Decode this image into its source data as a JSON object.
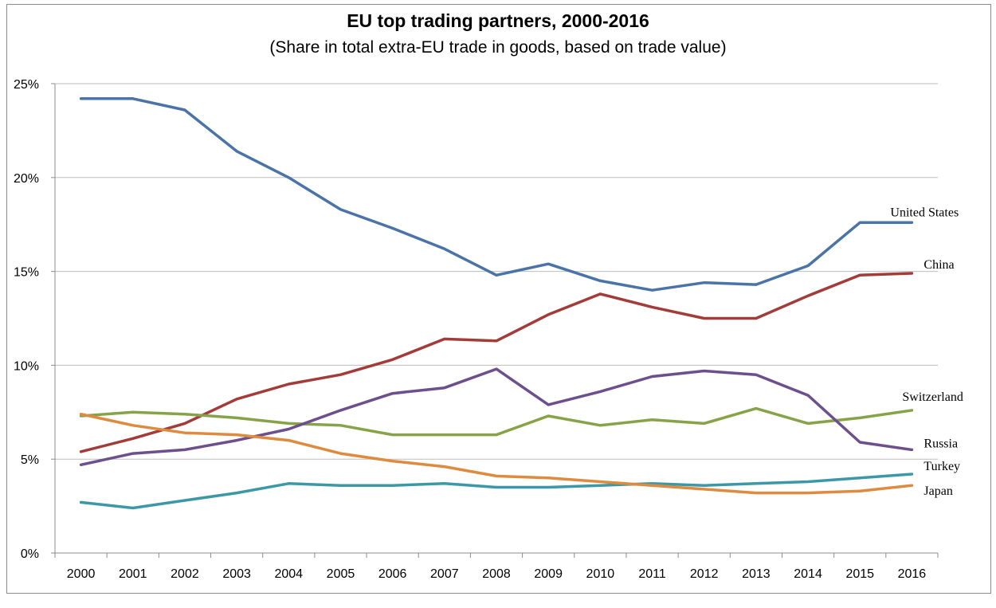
{
  "chart_data": {
    "type": "line",
    "title": "EU top trading partners, 2000-2016",
    "subtitle": "(Share in total extra-EU trade in goods, based on trade value)",
    "x": [
      "2000",
      "2001",
      "2002",
      "2003",
      "2004",
      "2005",
      "2006",
      "2007",
      "2008",
      "2009",
      "2010",
      "2011",
      "2012",
      "2013",
      "2014",
      "2015",
      "2016"
    ],
    "ylim": [
      0,
      25
    ],
    "yticks": [
      0,
      5,
      10,
      15,
      20,
      25
    ],
    "ytick_labels": [
      "0%",
      "5%",
      "10%",
      "15%",
      "20%",
      "25%"
    ],
    "grid": true,
    "legend": "inline labels at line ends",
    "series": [
      {
        "name": "United States",
        "color": "#4a73a8",
        "values": [
          24.2,
          24.2,
          23.6,
          21.4,
          20.0,
          18.3,
          17.3,
          16.2,
          14.8,
          15.4,
          14.5,
          14.0,
          14.4,
          14.3,
          15.3,
          17.6,
          17.6
        ]
      },
      {
        "name": "China",
        "color": "#a33c39",
        "values": [
          5.4,
          6.1,
          6.9,
          8.2,
          9.0,
          9.5,
          10.3,
          11.4,
          11.3,
          12.7,
          13.8,
          13.1,
          12.5,
          12.5,
          13.7,
          14.8,
          14.9
        ]
      },
      {
        "name": "Switzerland",
        "color": "#87a348",
        "values": [
          7.3,
          7.5,
          7.4,
          7.2,
          6.9,
          6.8,
          6.3,
          6.3,
          6.3,
          7.3,
          6.8,
          7.1,
          6.9,
          7.7,
          6.9,
          7.2,
          7.6
        ]
      },
      {
        "name": "Russia",
        "color": "#6c4f8c",
        "values": [
          4.7,
          5.3,
          5.5,
          6.0,
          6.6,
          7.6,
          8.5,
          8.8,
          9.8,
          7.9,
          8.6,
          9.4,
          9.7,
          9.5,
          8.4,
          5.9,
          5.5
        ]
      },
      {
        "name": "Turkey",
        "color": "#3c98a8",
        "values": [
          2.7,
          2.4,
          2.8,
          3.2,
          3.7,
          3.6,
          3.6,
          3.7,
          3.5,
          3.5,
          3.6,
          3.7,
          3.6,
          3.7,
          3.8,
          4.0,
          4.2
        ]
      },
      {
        "name": "Japan",
        "color": "#de8a3f",
        "values": [
          7.4,
          6.8,
          6.4,
          6.3,
          6.0,
          5.3,
          4.9,
          4.6,
          4.1,
          4.0,
          3.8,
          3.6,
          3.4,
          3.2,
          3.2,
          3.3,
          3.6
        ]
      }
    ]
  }
}
